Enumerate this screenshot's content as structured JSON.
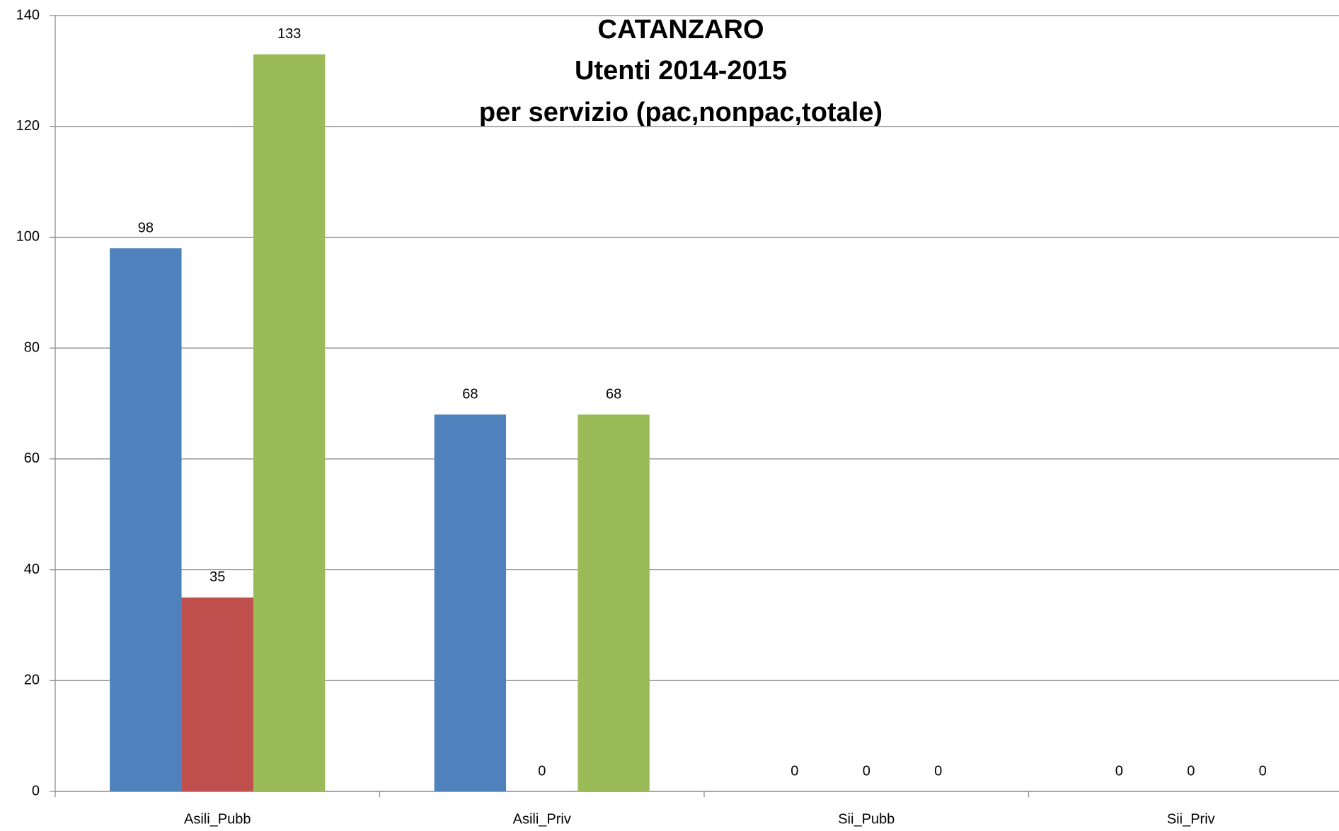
{
  "chart_data": {
    "type": "bar",
    "title": [
      "CATANZARO",
      "Utenti 2014-2015",
      "per servizio (pac,nonpac,totale)"
    ],
    "categories": [
      "Asili_Pubb",
      "Asili_Priv",
      "Sii_Pubb",
      "Sii_Priv"
    ],
    "series": [
      {
        "color": "#4f81bd",
        "values": [
          98,
          68,
          0,
          0
        ]
      },
      {
        "color": "#c0504d",
        "values": [
          35,
          0,
          0,
          0
        ]
      },
      {
        "color": "#9bbb59",
        "values": [
          133,
          68,
          0,
          0
        ]
      }
    ],
    "ylim": [
      0,
      140
    ],
    "yticks": [
      0,
      20,
      40,
      60,
      80,
      100,
      120,
      140
    ],
    "grid": true
  }
}
